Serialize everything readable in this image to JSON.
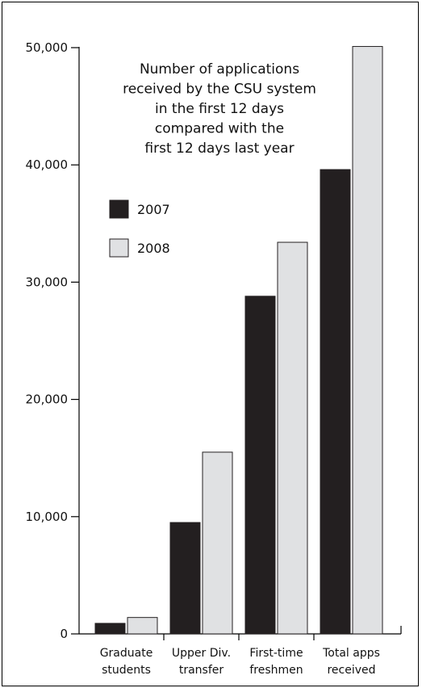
{
  "chart_data": {
    "type": "bar",
    "title": "Number of applications received by the CSU system in the first 12 days compared with the first 12 days last year",
    "title_lines": [
      "Number of applications",
      "received by the CSU system",
      "in the first 12 days",
      "compared with the",
      "first 12 days last year"
    ],
    "categories": [
      "Graduate students",
      "Upper Div. transfer",
      "First-time freshmen",
      "Total apps received"
    ],
    "category_lines": [
      [
        "Graduate",
        "students"
      ],
      [
        "Upper Div.",
        "transfer"
      ],
      [
        "First-time",
        "freshmen"
      ],
      [
        "Total apps",
        "received"
      ]
    ],
    "series": [
      {
        "name": "2007",
        "values": [
          900,
          9500,
          28800,
          39600
        ],
        "color": "#231f20"
      },
      {
        "name": "2008",
        "values": [
          1400,
          15500,
          33400,
          50100
        ],
        "color": "#e0e1e3"
      }
    ],
    "ylim": [
      0,
      50000
    ],
    "yticks": [
      0,
      10000,
      20000,
      30000,
      40000,
      50000
    ],
    "ytick_labels": [
      "0",
      "10,000",
      "20,000",
      "30,000",
      "40,000",
      "50,000"
    ],
    "xlabel": "",
    "ylabel": "",
    "legend_position": "upper-left",
    "grid": false
  }
}
